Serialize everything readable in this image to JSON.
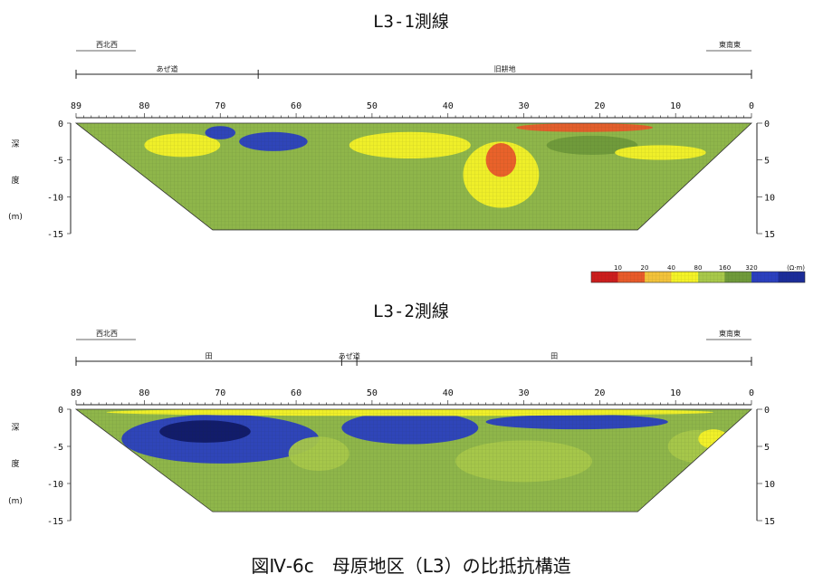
{
  "figure": {
    "caption": "図Ⅳ-6c　母原地区（L3）の比抵抗構造"
  },
  "legend": {
    "ticks": [
      "10",
      "20",
      "40",
      "80",
      "160",
      "320"
    ],
    "unit": "(Ω·m)",
    "colors": [
      "#cc1d1d",
      "#e85a2a",
      "#f2c23a",
      "#f4f227",
      "#a8c84a",
      "#6f9a3a",
      "#2a3fbf",
      "#1b2c9a"
    ]
  },
  "chart_data": [
    {
      "type": "heatmap",
      "title": "L3-1測線",
      "direction_left": "西北西",
      "direction_right": "東南東",
      "sections": [
        {
          "label": "あぜ道",
          "from": 89,
          "to": 65
        },
        {
          "label": "旧耕地",
          "from": 65,
          "to": 0
        }
      ],
      "x_ticks": [
        "89",
        "80",
        "70",
        "60",
        "50",
        "40",
        "30",
        "20",
        "10",
        "0"
      ],
      "xlim": [
        89,
        0
      ],
      "ylabel_chars": [
        "深",
        "度",
        "(m)"
      ],
      "y_ticks_left": [
        "0",
        "-5",
        "-10",
        "-15"
      ],
      "y_ticks_right": [
        "0",
        "5",
        "10",
        "15"
      ],
      "ylim": [
        0,
        -15
      ],
      "bottom_depth": -14.5,
      "background": "#8fb64a",
      "anomalies": [
        {
          "x": 75,
          "y": -3,
          "rx": 5,
          "ry": 1.6,
          "color": "#f4f227"
        },
        {
          "x": 70,
          "y": -1.3,
          "rx": 2,
          "ry": 0.9,
          "color": "#2a3fbf"
        },
        {
          "x": 63,
          "y": -2.5,
          "rx": 4.5,
          "ry": 1.3,
          "color": "#2a3fbf"
        },
        {
          "x": 45,
          "y": -3,
          "rx": 8,
          "ry": 1.8,
          "color": "#f4f227"
        },
        {
          "x": 33,
          "y": -7,
          "rx": 5,
          "ry": 4.5,
          "color": "#f4f227"
        },
        {
          "x": 33,
          "y": -5,
          "rx": 2,
          "ry": 2.3,
          "color": "#e85a2a"
        },
        {
          "x": 21,
          "y": -3,
          "rx": 6,
          "ry": 1.3,
          "color": "#6f9a3a"
        },
        {
          "x": 12,
          "y": -4,
          "rx": 6,
          "ry": 1,
          "color": "#f4f227"
        },
        {
          "x": 22,
          "y": -0.6,
          "rx": 9,
          "ry": 0.6,
          "color": "#e85a2a"
        }
      ]
    },
    {
      "type": "heatmap",
      "title": "L3-2測線",
      "direction_left": "西北西",
      "direction_right": "東南東",
      "sections": [
        {
          "label": "田",
          "from": 89,
          "to": 54
        },
        {
          "label": "あぜ道",
          "from": 54,
          "to": 52
        },
        {
          "label": "田",
          "from": 52,
          "to": 0
        }
      ],
      "x_ticks": [
        "89",
        "80",
        "70",
        "60",
        "50",
        "40",
        "30",
        "20",
        "10",
        "0"
      ],
      "xlim": [
        89,
        0
      ],
      "ylabel_chars": [
        "深",
        "度",
        "(m)"
      ],
      "y_ticks_left": [
        "0",
        "-5",
        "-10",
        "-15"
      ],
      "y_ticks_right": [
        "0",
        "5",
        "10",
        "15"
      ],
      "ylim": [
        0,
        -15
      ],
      "bottom_depth": -13.8,
      "background": "#8fb64a",
      "anomalies": [
        {
          "x": 70,
          "y": -4,
          "rx": 13,
          "ry": 3.3,
          "color": "#2a3fbf"
        },
        {
          "x": 72,
          "y": -3,
          "rx": 6,
          "ry": 1.5,
          "color": "#111a66"
        },
        {
          "x": 45,
          "y": -2.5,
          "rx": 9,
          "ry": 2.2,
          "color": "#2a3fbf"
        },
        {
          "x": 23,
          "y": -1.7,
          "rx": 12,
          "ry": 1,
          "color": "#2a3fbf"
        },
        {
          "x": 57,
          "y": -6,
          "rx": 4,
          "ry": 2.3,
          "color": "#a8c84a"
        },
        {
          "x": 30,
          "y": -7,
          "rx": 9,
          "ry": 2.8,
          "color": "#a8c84a"
        },
        {
          "x": 7,
          "y": -5,
          "rx": 4,
          "ry": 2.2,
          "color": "#a8c84a"
        },
        {
          "x": 5,
          "y": -4,
          "rx": 2,
          "ry": 1.3,
          "color": "#f4f227"
        },
        {
          "x": 45,
          "y": -0.4,
          "rx": 40,
          "ry": 0.5,
          "color": "#f4f227"
        }
      ]
    }
  ]
}
